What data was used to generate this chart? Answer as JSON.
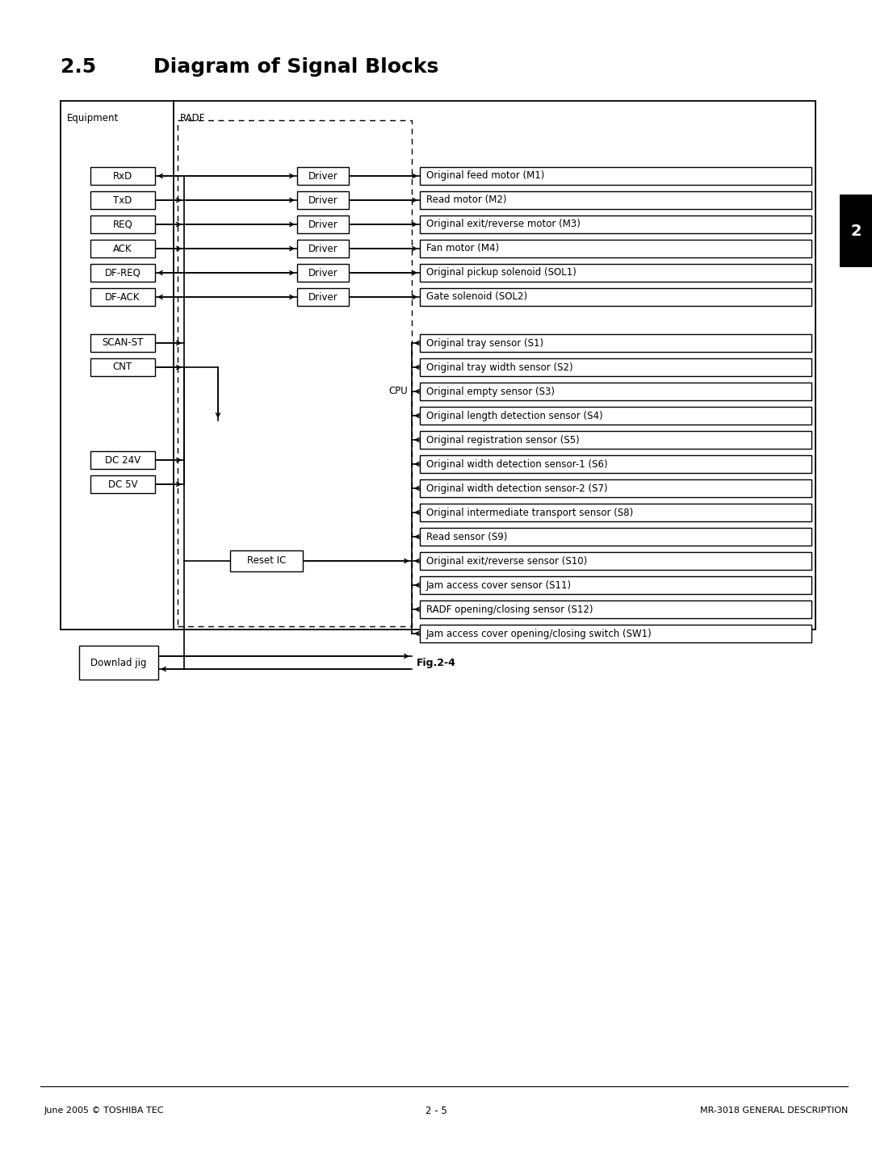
{
  "title_num": "2.5",
  "title_text": "Diagram of Signal Blocks",
  "fig_label": "Fig.2-4",
  "footer_left": "June 2005 © TOSHIBA TEC",
  "footer_right": "MR-3018 GENERAL DESCRIPTION",
  "footer_center": "2 - 5",
  "equipment_labels": [
    "RxD",
    "TxD",
    "REQ",
    "ACK",
    "DF-REQ",
    "DF-ACK",
    "SCAN-ST",
    "CNT",
    "DC 24V",
    "DC 5V"
  ],
  "driver_labels": [
    "Driver",
    "Driver",
    "Driver",
    "Driver",
    "Driver",
    "Driver"
  ],
  "motor_labels": [
    "Original feed motor (M1)",
    "Read motor (M2)",
    "Original exit/reverse motor (M3)",
    "Fan motor (M4)",
    "Original pickup solenoid (SOL1)",
    "Gate solenoid (SOL2)"
  ],
  "sensor_labels": [
    "Original tray sensor (S1)",
    "Original tray width sensor (S2)",
    "Original empty sensor (S3)",
    "Original length detection sensor (S4)",
    "Original registration sensor (S5)",
    "Original width detection sensor-1 (S6)",
    "Original width detection sensor-2 (S7)",
    "Original intermediate transport sensor (S8)",
    "Read sensor (S9)",
    "Original exit/reverse sensor (S10)",
    "Jam access cover sensor (S11)",
    "RADF opening/closing sensor (S12)",
    "Jam access cover opening/closing switch (SW1)"
  ],
  "eq_arrow_dirs": [
    "left",
    "right",
    "right",
    "right",
    "left",
    "left",
    "right",
    "right",
    "right",
    "right"
  ]
}
